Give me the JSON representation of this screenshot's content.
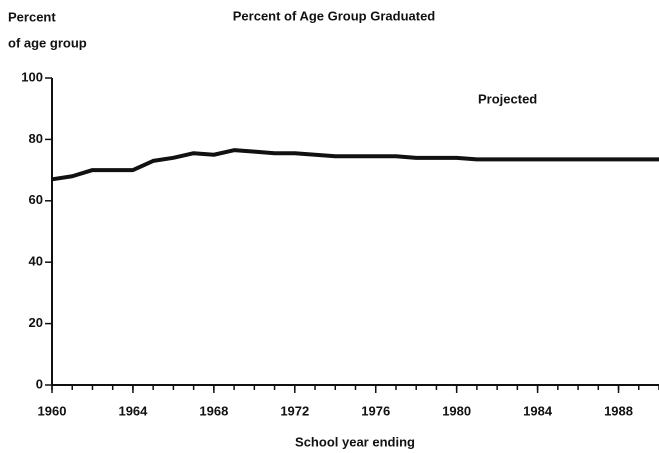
{
  "chart_data": {
    "type": "line",
    "title": "Percent of Age Group Graduated",
    "y_label": [
      "Percent",
      "of age group"
    ],
    "x_label": "School year ending",
    "annotation": "Projected",
    "x": [
      1960,
      1961,
      1962,
      1963,
      1964,
      1965,
      1966,
      1967,
      1968,
      1969,
      1970,
      1971,
      1972,
      1973,
      1974,
      1975,
      1976,
      1977,
      1978,
      1979,
      1980,
      1981,
      1982,
      1983,
      1984,
      1985,
      1986,
      1987,
      1988,
      1989,
      1990
    ],
    "series": [
      {
        "name": "Percent of age group graduated",
        "color": "#111111",
        "values": [
          67,
          68,
          70,
          70,
          70,
          73,
          74,
          75.5,
          75,
          76.5,
          76,
          75.5,
          75.5,
          75,
          74.5,
          74.5,
          74.5,
          74.5,
          74,
          74,
          74,
          73.5,
          73.5,
          73.5,
          73.5,
          73.5,
          73.5,
          73.5,
          73.5,
          73.5,
          73.5
        ]
      }
    ],
    "xlim": [
      1960,
      1990
    ],
    "xticks": [
      1960,
      1964,
      1968,
      1972,
      1976,
      1980,
      1984,
      1988
    ],
    "x_minor_ticks": [
      1960,
      1961,
      1962,
      1963,
      1964,
      1965,
      1966,
      1967,
      1968,
      1969,
      1970,
      1971,
      1972,
      1973,
      1974,
      1975,
      1976,
      1977,
      1978,
      1979,
      1980,
      1981,
      1982,
      1983,
      1984,
      1985,
      1986,
      1987,
      1988,
      1989,
      1990
    ],
    "ylim": [
      0,
      100
    ],
    "yticks": [
      0,
      20,
      40,
      60,
      80,
      100
    ],
    "grid": false
  }
}
